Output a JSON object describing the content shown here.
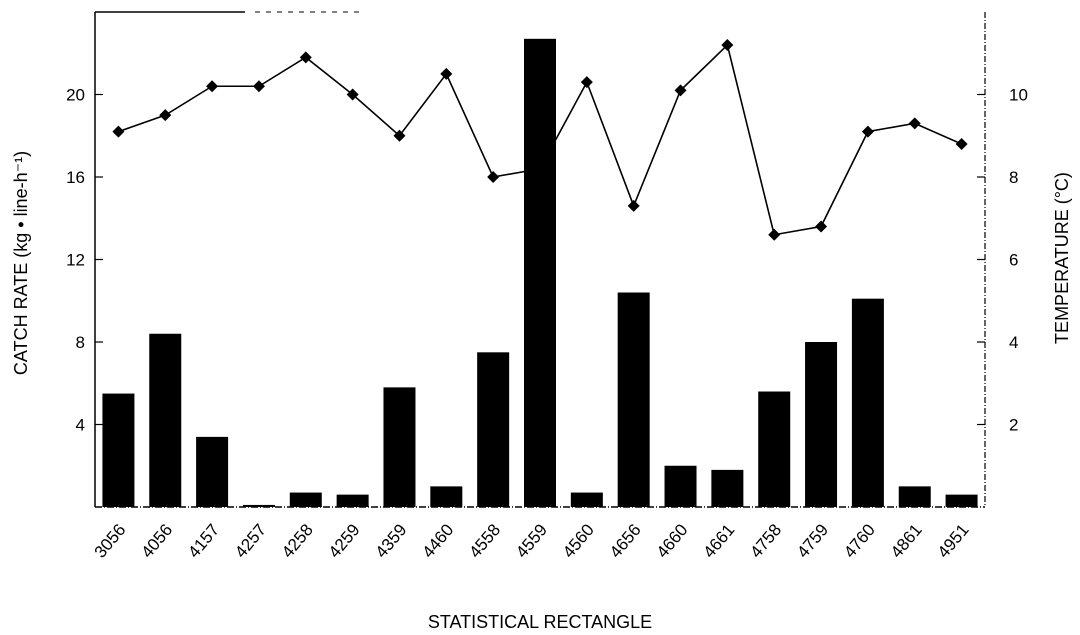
{
  "chart_data": {
    "type": "bar",
    "title": "",
    "xlabel": "STATISTICAL RECTANGLE",
    "ylabel": "CATCH RATE (kg • line-h⁻¹)",
    "y2label": "TEMPERATURE (°C)",
    "categories": [
      "3056",
      "4056",
      "4157",
      "4257",
      "4258",
      "4259",
      "4359",
      "4460",
      "4558",
      "4559",
      "4560",
      "4656",
      "4660",
      "4661",
      "4758",
      "4759",
      "4760",
      "4861",
      "4951"
    ],
    "ylim": [
      0,
      24
    ],
    "yticks": [
      4,
      8,
      12,
      16,
      20
    ],
    "y2lim": [
      0,
      12
    ],
    "y2ticks": [
      2,
      4,
      6,
      8,
      10
    ],
    "series": [
      {
        "type": "bar",
        "values": [
          5.5,
          8.4,
          3.4,
          0.1,
          0.7,
          0.6,
          5.8,
          1.0,
          7.5,
          22.7,
          0.7,
          10.4,
          2.0,
          1.8,
          5.6,
          8.0,
          10.1,
          1.0,
          0.6
        ],
        "color": "#000000"
      },
      {
        "type": "line",
        "axis": "right",
        "values": [
          9.1,
          9.5,
          10.2,
          10.2,
          10.9,
          10.0,
          9.0,
          10.5,
          8.0,
          8.2,
          10.3,
          7.3,
          10.1,
          11.2,
          6.6,
          6.8,
          9.1,
          9.3,
          8.8
        ],
        "color": "#000000",
        "marker": "diamond"
      }
    ]
  }
}
